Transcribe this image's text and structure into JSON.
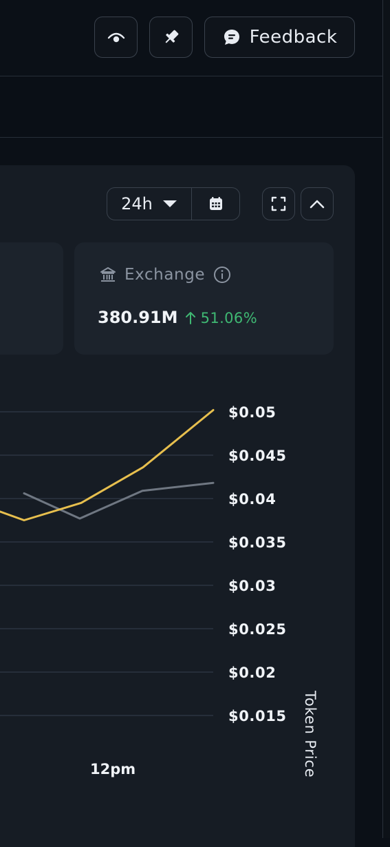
{
  "header": {
    "feedback_label": "Feedback",
    "icons": [
      "eye-icon",
      "pin-icon",
      "chat-bubble-icon"
    ]
  },
  "controls": {
    "time_range": "24h",
    "icons": [
      "chevron-down-icon",
      "calendar-icon",
      "expand-icon",
      "chevron-up-icon"
    ]
  },
  "stats": {
    "exchange": {
      "title": "Exchange",
      "value": "380.91M",
      "change": "51.06%",
      "icons": [
        "bank-icon",
        "info-icon",
        "arrow-up-icon"
      ]
    }
  },
  "chart_data": {
    "type": "line",
    "y_axis_label": "Token Price",
    "y_tick_labels": [
      "$0.05",
      "$0.045",
      "$0.04",
      "$0.035",
      "$0.03",
      "$0.025",
      "$0.02",
      "$0.015"
    ],
    "y_ticks": [
      0.05,
      0.045,
      0.04,
      0.035,
      0.03,
      0.025,
      0.02,
      0.015
    ],
    "x_tick_labels": [
      "12pm"
    ],
    "grid": "horizontal",
    "series": [
      {
        "color": "#e7bf4e",
        "values": [
          0.0385,
          0.0375,
          0.0395,
          0.0436,
          0.0502
        ]
      },
      {
        "color": "#6f7782",
        "values": [
          0.0406,
          0.0377,
          0.0409,
          0.0418
        ]
      }
    ]
  }
}
